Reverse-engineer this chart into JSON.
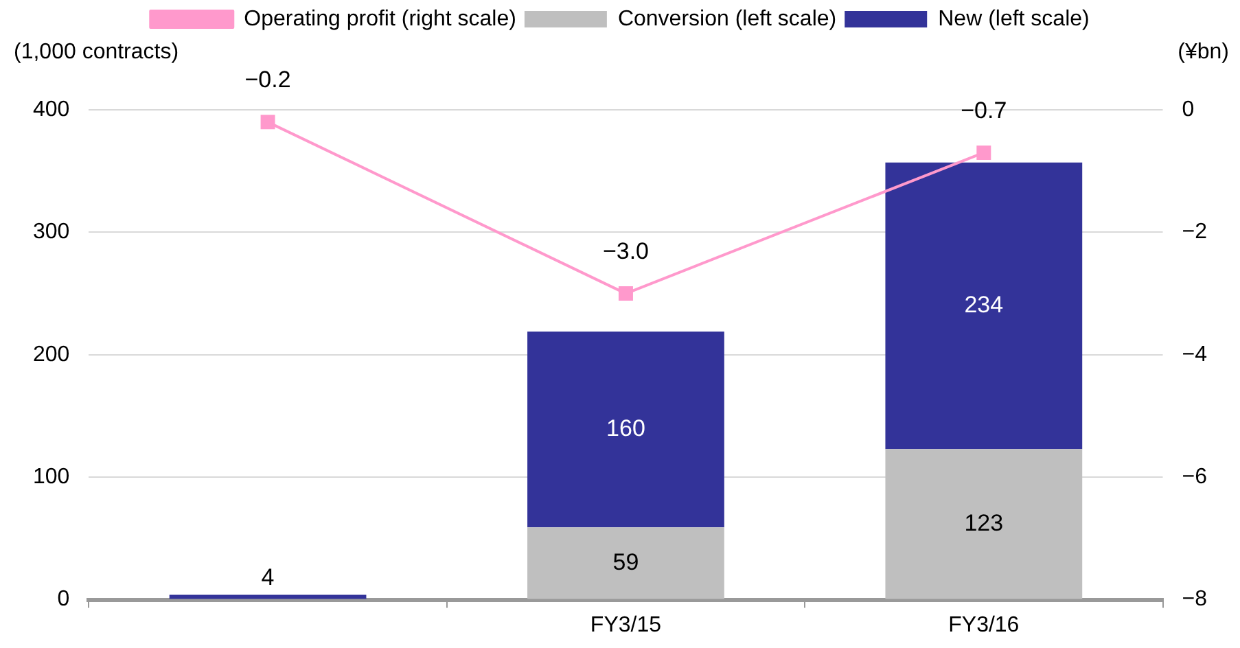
{
  "chart_data": {
    "type": "bar",
    "stacked": true,
    "ylabel": "(1,000 contracts)",
    "y2label": "(¥bn)",
    "categories": [
      null,
      "FY3/15",
      "FY3/16"
    ],
    "series": [
      {
        "name": "Conversion (left scale)",
        "color": "#bfbfbf",
        "values": [
          null,
          59,
          123
        ],
        "value_labels": [
          null,
          "59",
          "123"
        ]
      },
      {
        "name": "New (left scale)",
        "color": "#333399",
        "values": [
          4,
          160,
          234
        ],
        "value_labels": [
          "4",
          "160",
          "234"
        ]
      },
      {
        "name": "Operating profit (right scale)",
        "type": "line",
        "axis": "y2",
        "color": "#ff99cc",
        "values": [
          -0.2,
          -3.0,
          -0.7
        ],
        "value_labels": [
          "−0.2",
          "−3.0",
          "−0.7"
        ]
      }
    ],
    "ylim": [
      0,
      400
    ],
    "yticks": [
      0,
      100,
      200,
      300,
      400
    ],
    "y2lim": [
      -8,
      0
    ],
    "y2ticks": [
      {
        "value": -8,
        "label": "−8"
      },
      {
        "value": -6,
        "label": "−6"
      },
      {
        "value": -4,
        "label": "−4"
      },
      {
        "value": -2,
        "label": "−2"
      },
      0
    ],
    "grid": "y",
    "legend": "top",
    "marker": "square"
  }
}
